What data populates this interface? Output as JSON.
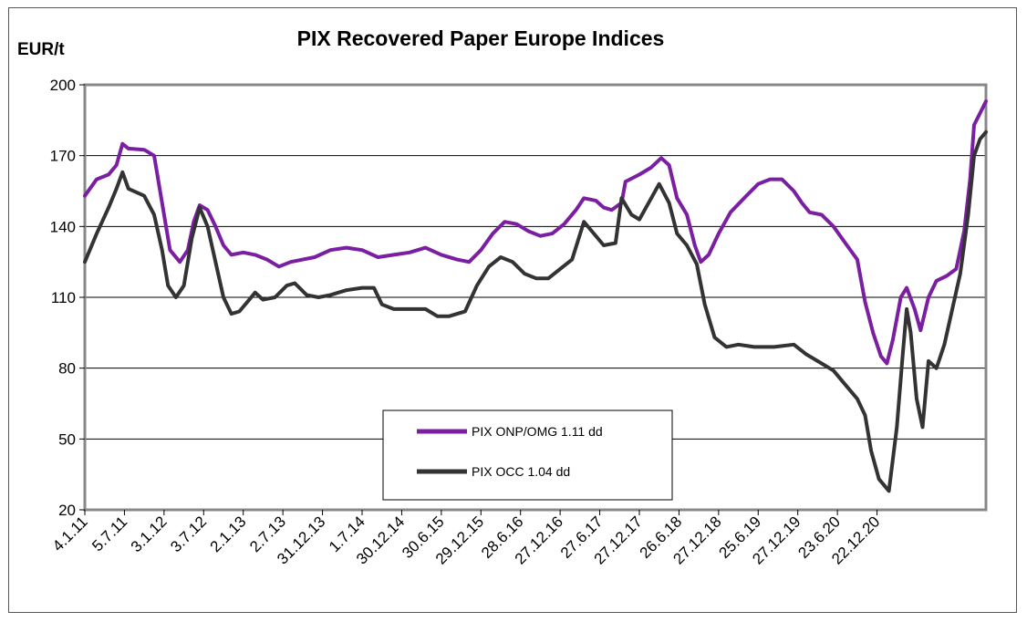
{
  "chart_data": {
    "type": "line",
    "title": "PIX Recovered Paper Europe Indices",
    "ylabel": "EUR/t",
    "xlabel": "",
    "ylim": [
      20,
      200
    ],
    "yticks": [
      20,
      50,
      80,
      110,
      140,
      170,
      200
    ],
    "grid": true,
    "legend_position": "bottom-center",
    "x_tick_labels": [
      "4.1.11",
      "5.7.11",
      "3.1.12",
      "3.7.12",
      "2.1.13",
      "2.7.13",
      "31.12.13",
      "1.7.14",
      "30.12.14",
      "30.6.15",
      "29.12.15",
      "28.6.16",
      "27.12.16",
      "27.6.17",
      "27.12.17",
      "26.6.18",
      "27.12.18",
      "25.6.19",
      "27.12.19",
      "23.6.20",
      "22.12.20"
    ],
    "x_range": [
      0,
      21.8
    ],
    "series": [
      {
        "name": "PIX ONP/OMG 1.11 dd",
        "color": "#7B1FA2",
        "points": [
          [
            0,
            153
          ],
          [
            0.3,
            160
          ],
          [
            0.6,
            162
          ],
          [
            0.8,
            166
          ],
          [
            0.95,
            175
          ],
          [
            1.1,
            173
          ],
          [
            1.5,
            172.5
          ],
          [
            1.75,
            170
          ],
          [
            1.95,
            150
          ],
          [
            2.15,
            130
          ],
          [
            2.4,
            125
          ],
          [
            2.6,
            130
          ],
          [
            2.75,
            142
          ],
          [
            2.9,
            149
          ],
          [
            3.1,
            147
          ],
          [
            3.3,
            140
          ],
          [
            3.5,
            132
          ],
          [
            3.7,
            128
          ],
          [
            4.0,
            129
          ],
          [
            4.3,
            128
          ],
          [
            4.6,
            126
          ],
          [
            4.9,
            123
          ],
          [
            5.2,
            125
          ],
          [
            5.5,
            126
          ],
          [
            5.8,
            127
          ],
          [
            6.2,
            130
          ],
          [
            6.6,
            131
          ],
          [
            7.0,
            130
          ],
          [
            7.4,
            127
          ],
          [
            7.8,
            128
          ],
          [
            8.2,
            129
          ],
          [
            8.6,
            131
          ],
          [
            9.0,
            128
          ],
          [
            9.4,
            126
          ],
          [
            9.7,
            125
          ],
          [
            10.0,
            130
          ],
          [
            10.3,
            137
          ],
          [
            10.6,
            142
          ],
          [
            10.9,
            141
          ],
          [
            11.2,
            138
          ],
          [
            11.5,
            136
          ],
          [
            11.8,
            137
          ],
          [
            12.1,
            141
          ],
          [
            12.4,
            147
          ],
          [
            12.6,
            152
          ],
          [
            12.9,
            151
          ],
          [
            13.1,
            148
          ],
          [
            13.3,
            147
          ],
          [
            13.55,
            150
          ],
          [
            13.65,
            159
          ],
          [
            14.0,
            162
          ],
          [
            14.3,
            165
          ],
          [
            14.55,
            169
          ],
          [
            14.75,
            166
          ],
          [
            14.95,
            152
          ],
          [
            15.2,
            145
          ],
          [
            15.4,
            132
          ],
          [
            15.55,
            125
          ],
          [
            15.75,
            128
          ],
          [
            16.0,
            137
          ],
          [
            16.3,
            146
          ],
          [
            16.7,
            153
          ],
          [
            17.0,
            158
          ],
          [
            17.3,
            160
          ],
          [
            17.6,
            160
          ],
          [
            17.9,
            155
          ],
          [
            18.1,
            150
          ],
          [
            18.3,
            146
          ],
          [
            18.6,
            145
          ],
          [
            18.9,
            140
          ],
          [
            19.2,
            133
          ],
          [
            19.5,
            126
          ],
          [
            19.7,
            108
          ],
          [
            19.9,
            95
          ],
          [
            20.1,
            85
          ],
          [
            20.25,
            82
          ],
          [
            20.4,
            92
          ],
          [
            20.6,
            110
          ],
          [
            20.75,
            114
          ],
          [
            20.95,
            105
          ],
          [
            21.1,
            96
          ],
          [
            21.3,
            110
          ],
          [
            21.5,
            117
          ],
          [
            21.75,
            119
          ],
          [
            22.0,
            122
          ],
          [
            22.2,
            138
          ],
          [
            22.35,
            160
          ],
          [
            22.45,
            183
          ],
          [
            22.6,
            188
          ],
          [
            22.75,
            193
          ]
        ]
      },
      {
        "name": "PIX OCC 1.04 dd",
        "color": "#333333",
        "points": [
          [
            0,
            125
          ],
          [
            0.3,
            137
          ],
          [
            0.6,
            148
          ],
          [
            0.8,
            156
          ],
          [
            0.95,
            163
          ],
          [
            1.1,
            156
          ],
          [
            1.5,
            153
          ],
          [
            1.75,
            145
          ],
          [
            1.95,
            130
          ],
          [
            2.1,
            115
          ],
          [
            2.3,
            110
          ],
          [
            2.5,
            115
          ],
          [
            2.7,
            135
          ],
          [
            2.9,
            148
          ],
          [
            3.1,
            140
          ],
          [
            3.3,
            125
          ],
          [
            3.5,
            110
          ],
          [
            3.7,
            103
          ],
          [
            3.9,
            104
          ],
          [
            4.1,
            108
          ],
          [
            4.3,
            112
          ],
          [
            4.5,
            109
          ],
          [
            4.8,
            110
          ],
          [
            5.1,
            115
          ],
          [
            5.3,
            116
          ],
          [
            5.6,
            111
          ],
          [
            5.9,
            110
          ],
          [
            6.2,
            111
          ],
          [
            6.6,
            113
          ],
          [
            7.0,
            114
          ],
          [
            7.3,
            114
          ],
          [
            7.5,
            107
          ],
          [
            7.8,
            105
          ],
          [
            8.2,
            105
          ],
          [
            8.6,
            105
          ],
          [
            8.9,
            102
          ],
          [
            9.2,
            102
          ],
          [
            9.6,
            104
          ],
          [
            9.9,
            115
          ],
          [
            10.2,
            123
          ],
          [
            10.5,
            127
          ],
          [
            10.8,
            125
          ],
          [
            11.1,
            120
          ],
          [
            11.4,
            118
          ],
          [
            11.7,
            118
          ],
          [
            12.0,
            122
          ],
          [
            12.3,
            126
          ],
          [
            12.6,
            142
          ],
          [
            12.8,
            138
          ],
          [
            13.1,
            132
          ],
          [
            13.4,
            133
          ],
          [
            13.55,
            152
          ],
          [
            13.8,
            145
          ],
          [
            14.0,
            143
          ],
          [
            14.3,
            152
          ],
          [
            14.5,
            158
          ],
          [
            14.75,
            150
          ],
          [
            14.95,
            137
          ],
          [
            15.2,
            132
          ],
          [
            15.45,
            124
          ],
          [
            15.65,
            107
          ],
          [
            15.9,
            93
          ],
          [
            16.2,
            89
          ],
          [
            16.5,
            90
          ],
          [
            16.9,
            89
          ],
          [
            17.4,
            89
          ],
          [
            17.9,
            90
          ],
          [
            18.2,
            86
          ],
          [
            18.6,
            82
          ],
          [
            18.9,
            79
          ],
          [
            19.2,
            73
          ],
          [
            19.5,
            67
          ],
          [
            19.7,
            60
          ],
          [
            19.85,
            45
          ],
          [
            20.05,
            33
          ],
          [
            20.3,
            28
          ],
          [
            20.5,
            55
          ],
          [
            20.65,
            86
          ],
          [
            20.75,
            105
          ],
          [
            20.85,
            95
          ],
          [
            21.0,
            67
          ],
          [
            21.15,
            55
          ],
          [
            21.3,
            83
          ],
          [
            21.5,
            80
          ],
          [
            21.7,
            90
          ],
          [
            21.9,
            105
          ],
          [
            22.1,
            120
          ],
          [
            22.3,
            145
          ],
          [
            22.45,
            170
          ],
          [
            22.6,
            177
          ],
          [
            22.75,
            180
          ]
        ]
      }
    ]
  }
}
